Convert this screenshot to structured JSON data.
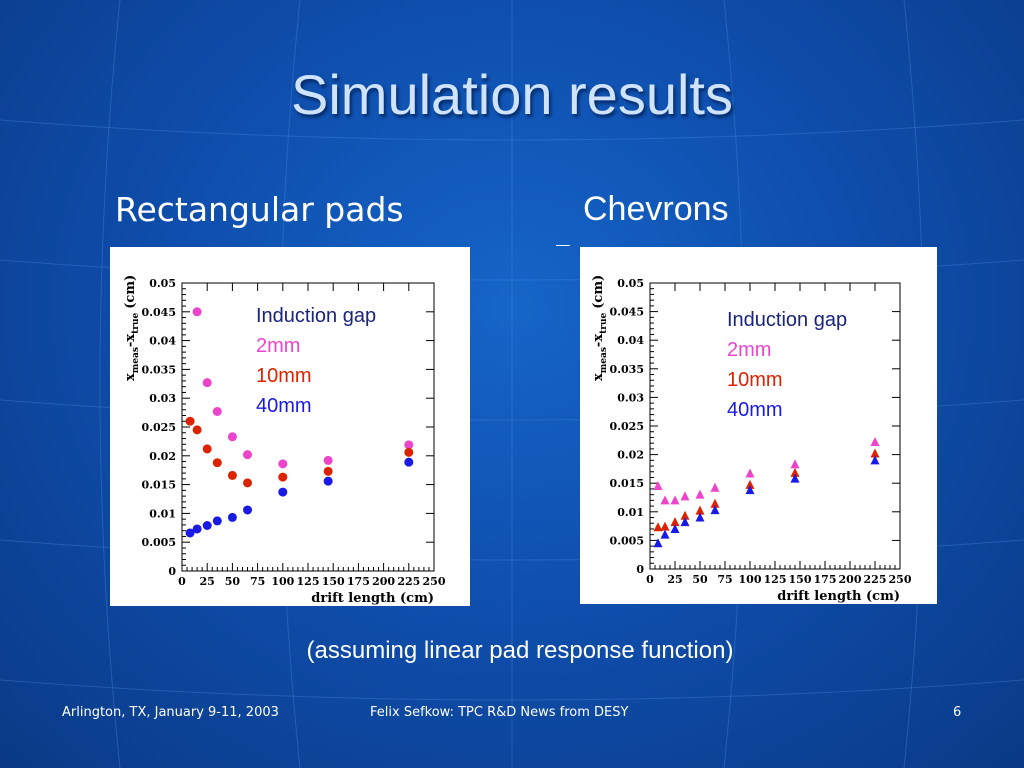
{
  "slide": {
    "title": "Simulation results",
    "left_heading": "Rectangular pads",
    "right_heading": "Chevrons",
    "note": "(assuming linear pad response function)",
    "footer_left": "Arlington, TX, January 9-11, 2003",
    "footer_center": "Felix Sefkow: TPC R&D News from DESY",
    "page_number": "6"
  },
  "colors": {
    "background": "#0f4fae",
    "title": "#cfe3ff",
    "series_2mm": "#ee44cc",
    "series_10mm": "#dd2200",
    "series_40mm": "#1a1ae6"
  },
  "chart_data": [
    {
      "type": "scatter",
      "panel": "Rectangular pads",
      "marker": "circle",
      "ylabel_main": "x",
      "ylabel_sub1": "meas",
      "ylabel_mid": "-x",
      "ylabel_sub2": "true",
      "ylabel_unit": "(cm)",
      "xlabel": "drift length (cm)",
      "xlim": [
        0,
        250
      ],
      "ylim": [
        0,
        0.05
      ],
      "xticks": [
        "0",
        "25",
        "50",
        "75",
        "100",
        "125",
        "150",
        "175",
        "200",
        "225",
        "250"
      ],
      "yticks": [
        "0",
        "0.005",
        "0.01",
        "0.015",
        "0.02",
        "0.025",
        "0.03",
        "0.035",
        "0.04",
        "0.045",
        "0.05"
      ],
      "legend": {
        "title": "Induction gap",
        "entries": [
          "2mm",
          "10mm",
          "40mm"
        ]
      },
      "series": [
        {
          "name": "2mm",
          "color": "#ee44cc",
          "x": [
            15,
            25,
            35,
            50,
            65,
            100,
            145,
            225
          ],
          "y": [
            0.045,
            0.0327,
            0.0277,
            0.0233,
            0.0202,
            0.0186,
            0.0192,
            0.0219
          ]
        },
        {
          "name": "10mm",
          "color": "#dd2200",
          "x": [
            8,
            15,
            25,
            35,
            50,
            65,
            100,
            145,
            225
          ],
          "y": [
            0.026,
            0.0245,
            0.0212,
            0.0188,
            0.0166,
            0.0153,
            0.0163,
            0.0173,
            0.0206
          ]
        },
        {
          "name": "40mm",
          "color": "#1a1ae6",
          "x": [
            8,
            15,
            25,
            35,
            50,
            65,
            100,
            145,
            225
          ],
          "y": [
            0.0066,
            0.0073,
            0.0079,
            0.0087,
            0.0093,
            0.0106,
            0.0137,
            0.0156,
            0.0189
          ]
        }
      ]
    },
    {
      "type": "scatter",
      "panel": "Chevrons",
      "marker": "triangle",
      "ylabel_main": "x",
      "ylabel_sub1": "meas",
      "ylabel_mid": "-x",
      "ylabel_sub2": "true",
      "ylabel_unit": "(cm)",
      "xlabel": "drift length (cm)",
      "xlim": [
        0,
        250
      ],
      "ylim": [
        0,
        0.05
      ],
      "xticks": [
        "0",
        "25",
        "50",
        "75",
        "100",
        "125",
        "150",
        "175",
        "200",
        "225",
        "250"
      ],
      "yticks": [
        "0",
        "0.005",
        "0.01",
        "0.015",
        "0.02",
        "0.025",
        "0.03",
        "0.035",
        "0.04",
        "0.045",
        "0.05"
      ],
      "legend": {
        "title": "Induction gap",
        "entries": [
          "2mm",
          "10mm",
          "40mm"
        ]
      },
      "series": [
        {
          "name": "2mm",
          "color": "#ee44cc",
          "x": [
            8,
            15,
            25,
            35,
            50,
            65,
            100,
            145,
            225
          ],
          "y": [
            0.0145,
            0.012,
            0.012,
            0.0127,
            0.013,
            0.0142,
            0.0167,
            0.0183,
            0.0222
          ]
        },
        {
          "name": "10mm",
          "color": "#dd2200",
          "x": [
            8,
            15,
            25,
            35,
            50,
            65,
            100,
            145,
            225
          ],
          "y": [
            0.0073,
            0.0074,
            0.0082,
            0.0093,
            0.0102,
            0.0114,
            0.0147,
            0.0168,
            0.0202
          ]
        },
        {
          "name": "40mm",
          "color": "#1a1ae6",
          "x": [
            8,
            15,
            25,
            35,
            50,
            65,
            100,
            145,
            225
          ],
          "y": [
            0.0045,
            0.006,
            0.007,
            0.0082,
            0.009,
            0.0103,
            0.0138,
            0.0158,
            0.019
          ]
        }
      ]
    }
  ]
}
